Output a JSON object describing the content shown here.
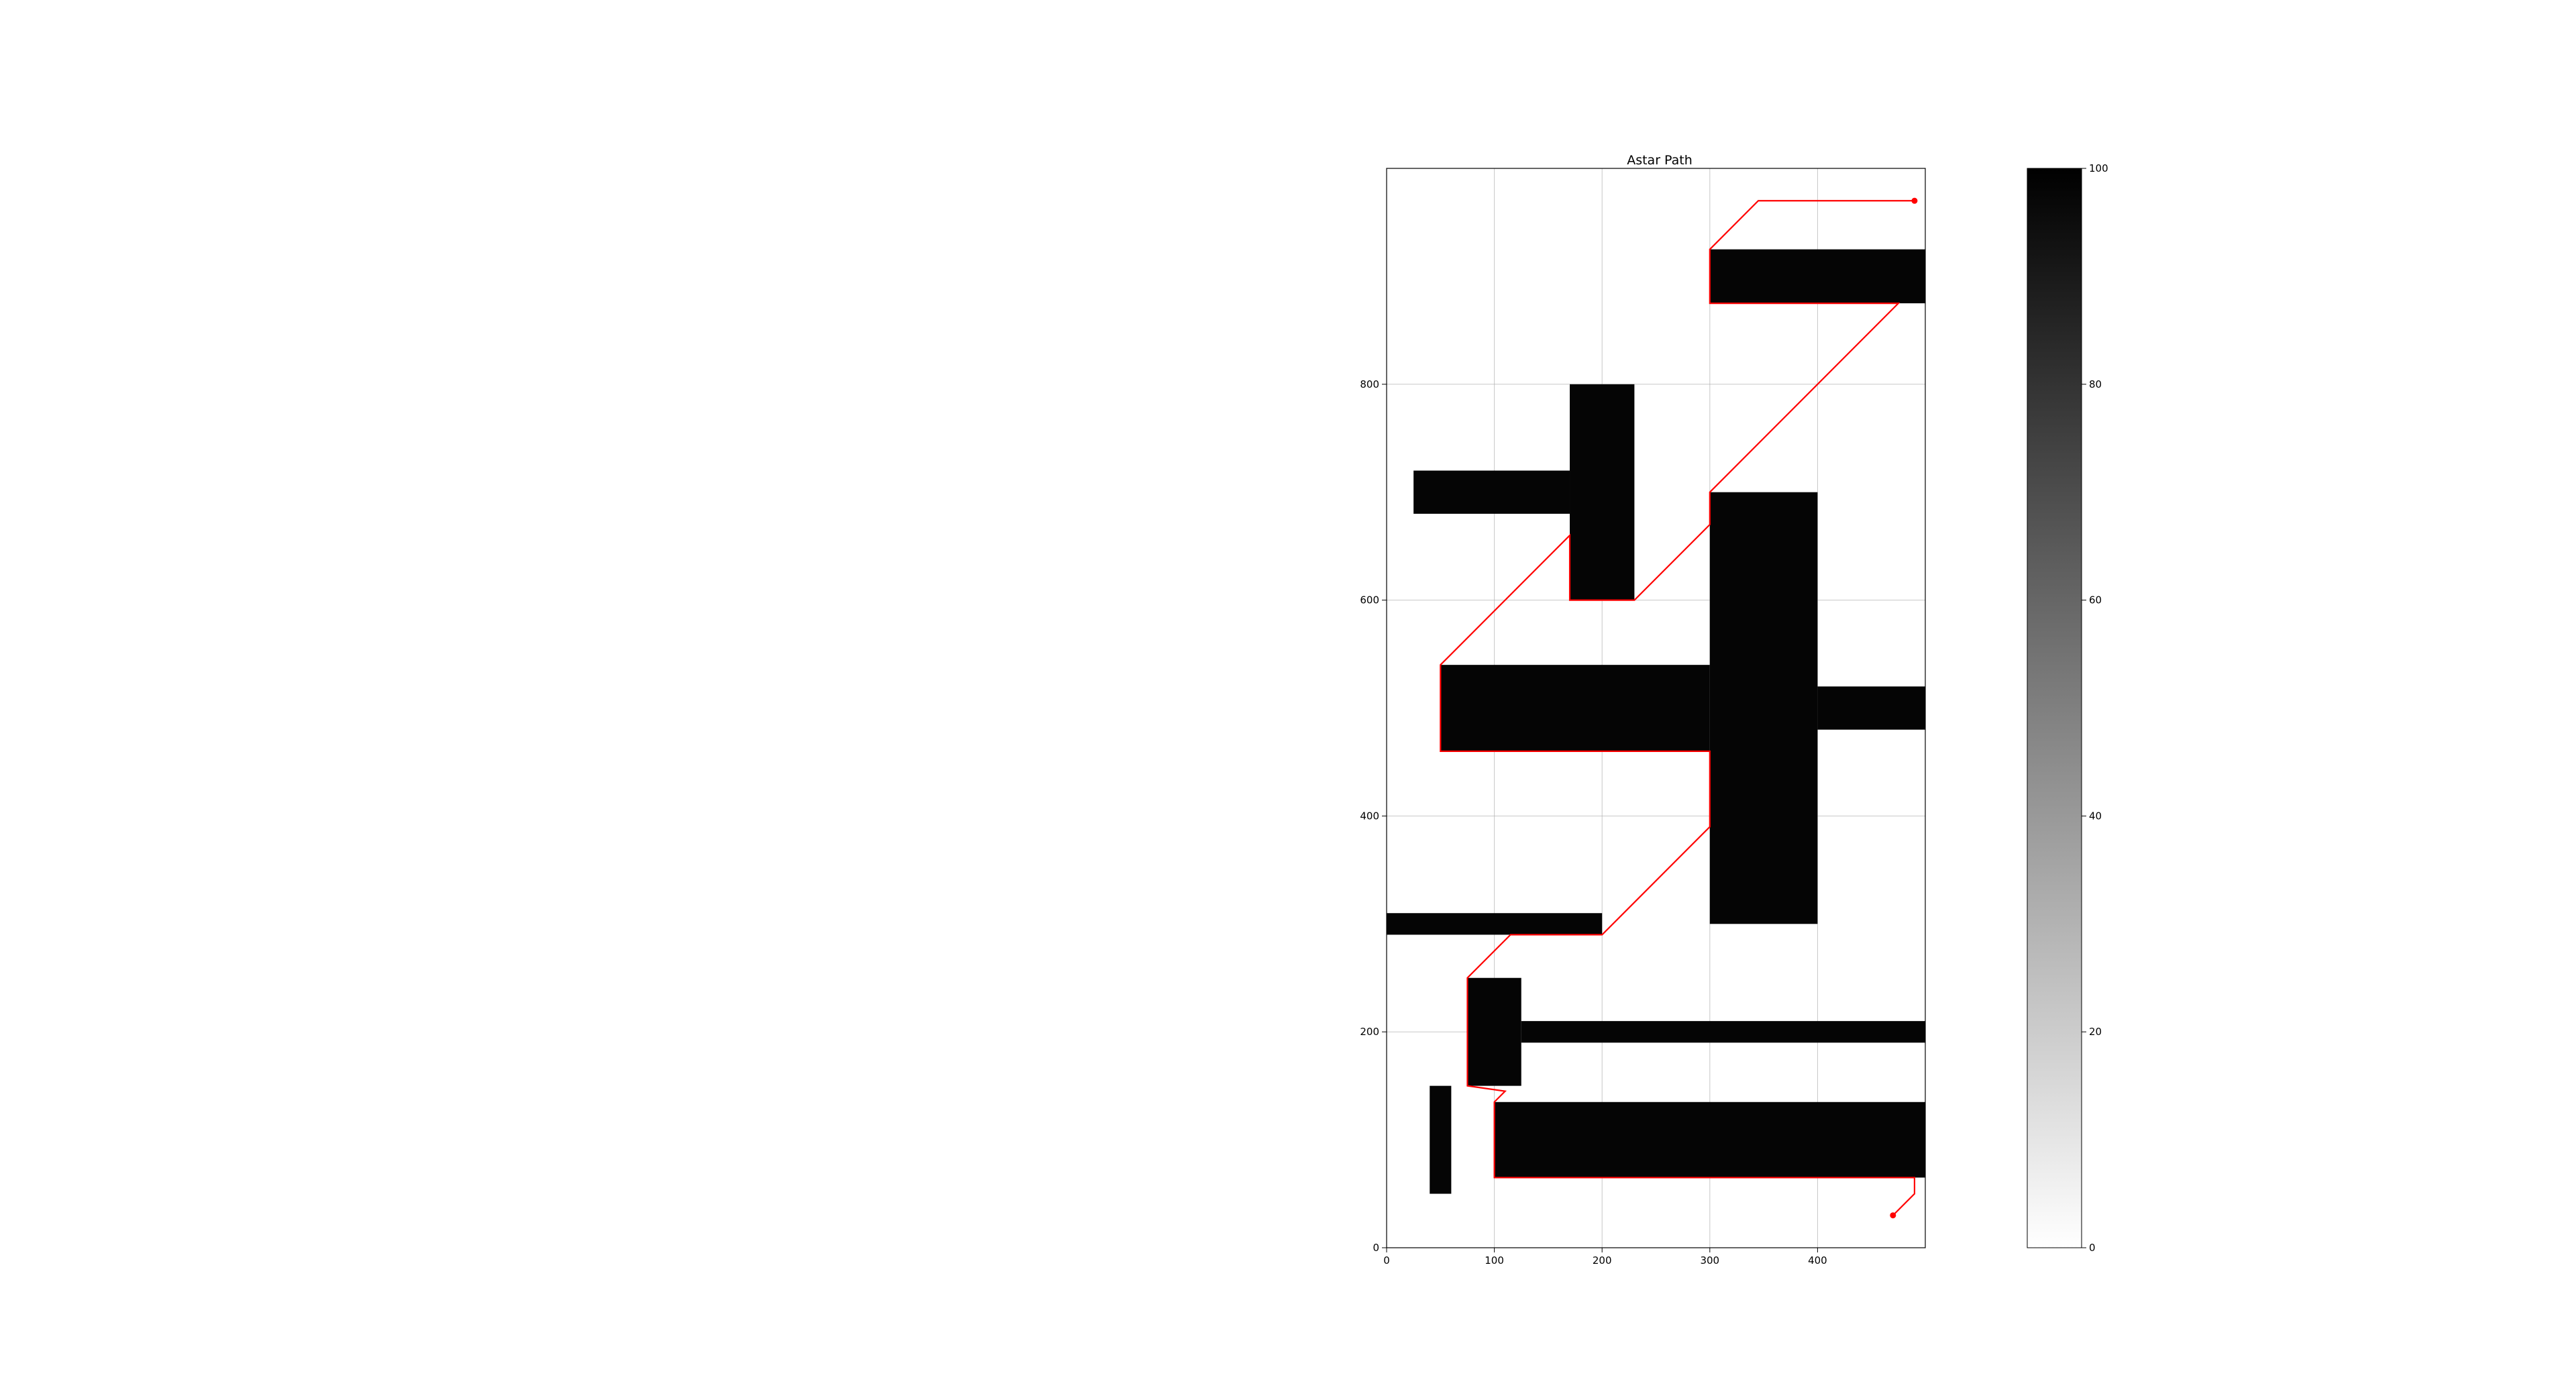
{
  "chart_data": {
    "type": "heatmap",
    "title": "Astar Path",
    "xlabel": "",
    "ylabel": "",
    "xlim": [
      0,
      500
    ],
    "ylim": [
      0,
      1000
    ],
    "x_ticks": [
      0,
      100,
      200,
      300,
      400
    ],
    "y_ticks": [
      0,
      200,
      400,
      600,
      800
    ],
    "grid": true,
    "colormap": "gray_r",
    "obstacle_value": 100,
    "free_value": 0,
    "obstacles": [
      {
        "x0": 300,
        "x1": 500,
        "y0": 875,
        "y1": 925
      },
      {
        "x0": 170,
        "x1": 230,
        "y0": 600,
        "y1": 800
      },
      {
        "x0": 25,
        "x1": 170,
        "y0": 680,
        "y1": 720
      },
      {
        "x0": 300,
        "x1": 400,
        "y0": 300,
        "y1": 700
      },
      {
        "x0": 50,
        "x1": 300,
        "y0": 460,
        "y1": 540
      },
      {
        "x0": 400,
        "x1": 500,
        "y0": 480,
        "y1": 520
      },
      {
        "x0": 0,
        "x1": 200,
        "y0": 290,
        "y1": 310
      },
      {
        "x0": 75,
        "x1": 125,
        "y0": 150,
        "y1": 250
      },
      {
        "x0": 125,
        "x1": 500,
        "y0": 190,
        "y1": 210
      },
      {
        "x0": 40,
        "x1": 60,
        "y0": 50,
        "y1": 150
      },
      {
        "x0": 100,
        "x1": 500,
        "y0": 65,
        "y1": 135
      }
    ],
    "path": [
      [
        470,
        30
      ],
      [
        490,
        50
      ],
      [
        490,
        65
      ],
      [
        100,
        65
      ],
      [
        100,
        135
      ],
      [
        110,
        145
      ],
      [
        75,
        150
      ],
      [
        75,
        250
      ],
      [
        115,
        290
      ],
      [
        200,
        290
      ],
      [
        300,
        390
      ],
      [
        300,
        460
      ],
      [
        50,
        460
      ],
      [
        50,
        540
      ],
      [
        170,
        660
      ],
      [
        170,
        600
      ],
      [
        230,
        600
      ],
      [
        300,
        670
      ],
      [
        300,
        700
      ],
      [
        475,
        875
      ],
      [
        300,
        875
      ],
      [
        300,
        925
      ],
      [
        345,
        970
      ],
      [
        490,
        970
      ]
    ],
    "path_color": "#ff0000",
    "start_point": [
      470,
      30
    ],
    "goal_point": [
      490,
      970
    ],
    "colorbar": {
      "min": 0,
      "max": 100,
      "ticks": [
        0,
        20,
        40,
        60,
        80,
        100
      ]
    }
  }
}
